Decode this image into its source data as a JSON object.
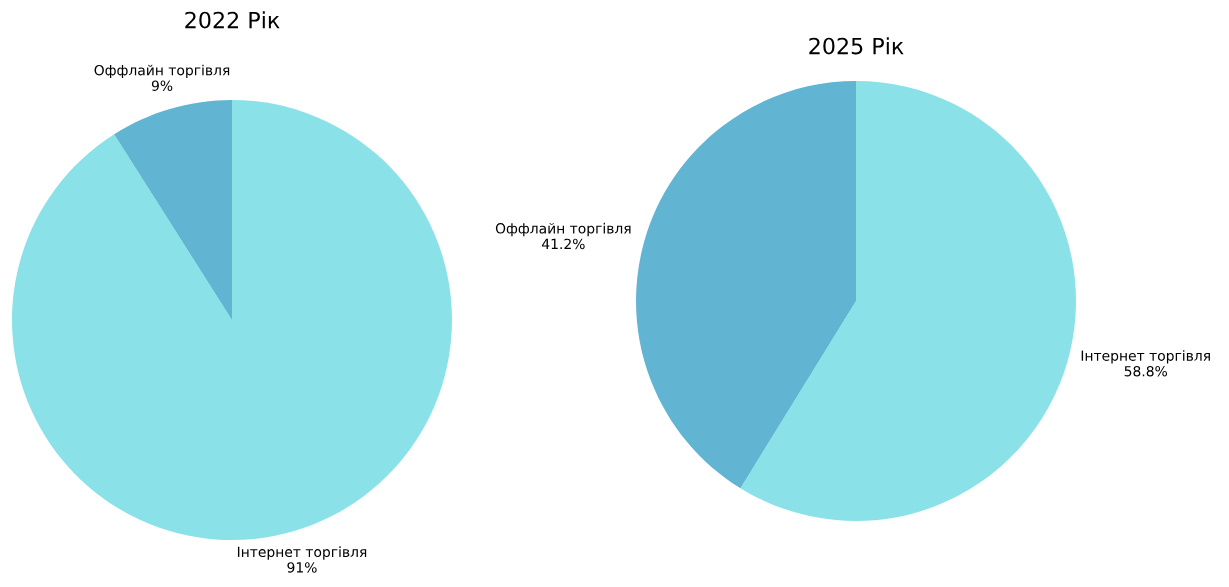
{
  "chart_data": [
    {
      "type": "pie",
      "title": "2022 Рік",
      "categories": [
        "Інтернет торгівля",
        "Оффлайн торгівля"
      ],
      "values": [
        91,
        9
      ],
      "colors": [
        "#8ae2e8",
        "#62b4d3"
      ],
      "value_labels": [
        "91%",
        "9%"
      ]
    },
    {
      "type": "pie",
      "title": "2025 Рік",
      "categories": [
        "Інтернет торгівля",
        "Оффлайн торгівля"
      ],
      "values": [
        58.8,
        41.2
      ],
      "colors": [
        "#8ae2e8",
        "#62b4d3"
      ],
      "value_labels": [
        "58.8%",
        "41.2%"
      ]
    }
  ]
}
